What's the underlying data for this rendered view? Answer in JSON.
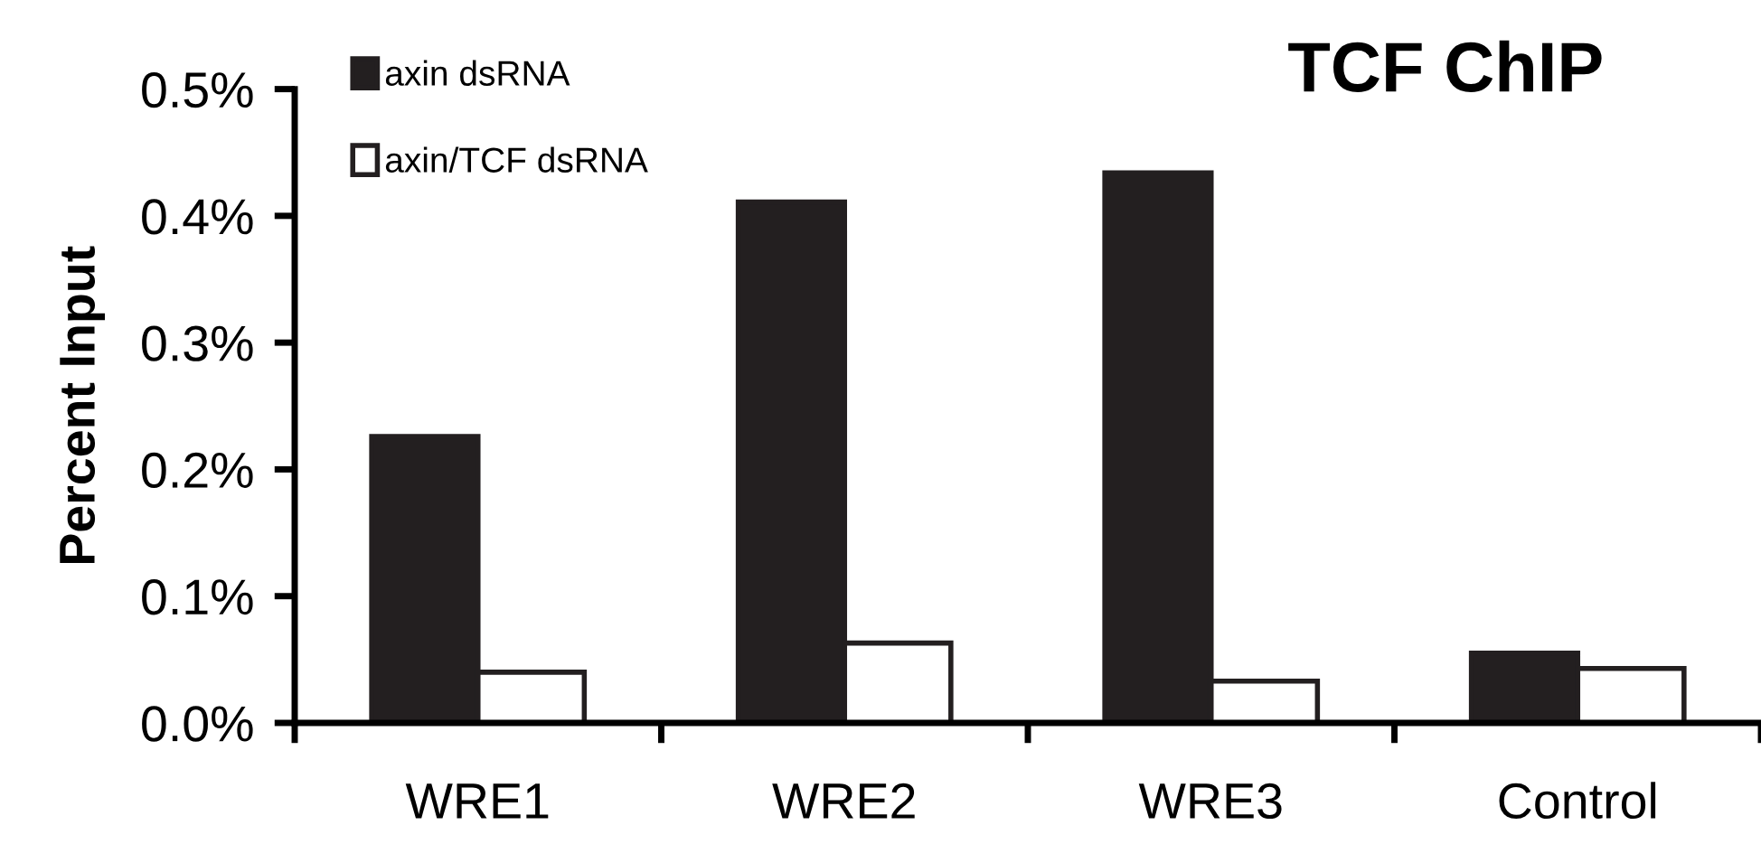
{
  "chart_data": {
    "type": "bar",
    "title": "TCF ChIP",
    "ylabel": "Percent Input",
    "categories": [
      "WRE1",
      "WRE2",
      "WRE3",
      "Control"
    ],
    "series": [
      {
        "name": "axin dsRNA",
        "color": "#231f20",
        "values": [
          0.226,
          0.411,
          0.434,
          0.055
        ]
      },
      {
        "name": "axin/TCF dsRNA",
        "color": "#ffffff",
        "values": [
          0.04,
          0.063,
          0.033,
          0.043
        ]
      }
    ],
    "ylim": [
      0,
      0.5
    ],
    "yticks": [
      {
        "value": 0,
        "label": "0.0%"
      },
      {
        "value": 0.1,
        "label": "0.1%"
      },
      {
        "value": 0.2,
        "label": "0.2%"
      },
      {
        "value": 0.3,
        "label": "0.3%"
      },
      {
        "value": 0.4,
        "label": "0.4%"
      },
      {
        "value": 0.5,
        "label": "0.5%"
      }
    ],
    "grid": false,
    "legend": "top left"
  }
}
